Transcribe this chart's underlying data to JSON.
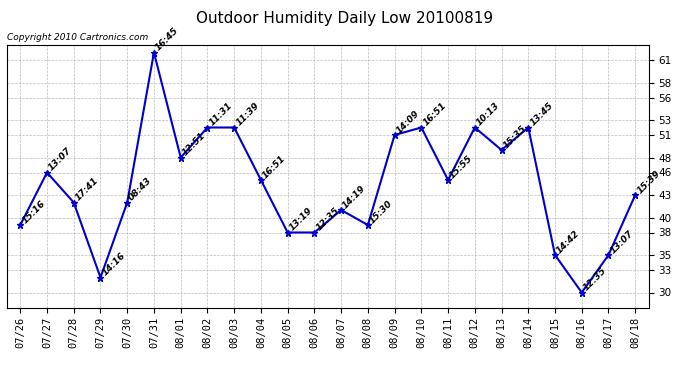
{
  "title": "Outdoor Humidity Daily Low 20100819",
  "copyright": "Copyright 2010 Cartronics.com",
  "x_labels": [
    "07/26",
    "07/27",
    "07/28",
    "07/29",
    "07/30",
    "07/31",
    "08/01",
    "08/02",
    "08/03",
    "08/04",
    "08/05",
    "08/06",
    "08/07",
    "08/08",
    "08/09",
    "08/10",
    "08/11",
    "08/12",
    "08/13",
    "08/14",
    "08/15",
    "08/16",
    "08/17",
    "08/18"
  ],
  "y_values": [
    39,
    46,
    42,
    32,
    42,
    62,
    48,
    52,
    52,
    45,
    38,
    38,
    41,
    39,
    51,
    52,
    45,
    52,
    49,
    52,
    35,
    30,
    35,
    43
  ],
  "point_labels": [
    "15:16",
    "13:07",
    "17:41",
    "14:16",
    "08:43",
    "16:45",
    "12:51",
    "11:31",
    "11:39",
    "16:51",
    "13:19",
    "12:35",
    "14:19",
    "15:30",
    "14:09",
    "16:51",
    "15:55",
    "10:13",
    "15:35",
    "13:45",
    "14:42",
    "12:35",
    "13:07",
    "15:39"
  ],
  "line_color": "#0000CC",
  "marker_color": "#0000CC",
  "background_color": "#ffffff",
  "plot_bg_color": "#ffffff",
  "grid_color": "#aaaaaa",
  "ylim": [
    28,
    63
  ],
  "yticks": [
    30,
    33,
    35,
    38,
    40,
    43,
    46,
    48,
    51,
    53,
    56,
    58,
    61
  ],
  "title_fontsize": 11,
  "label_fontsize": 6.5,
  "tick_fontsize": 7.5,
  "copyright_fontsize": 6.5
}
